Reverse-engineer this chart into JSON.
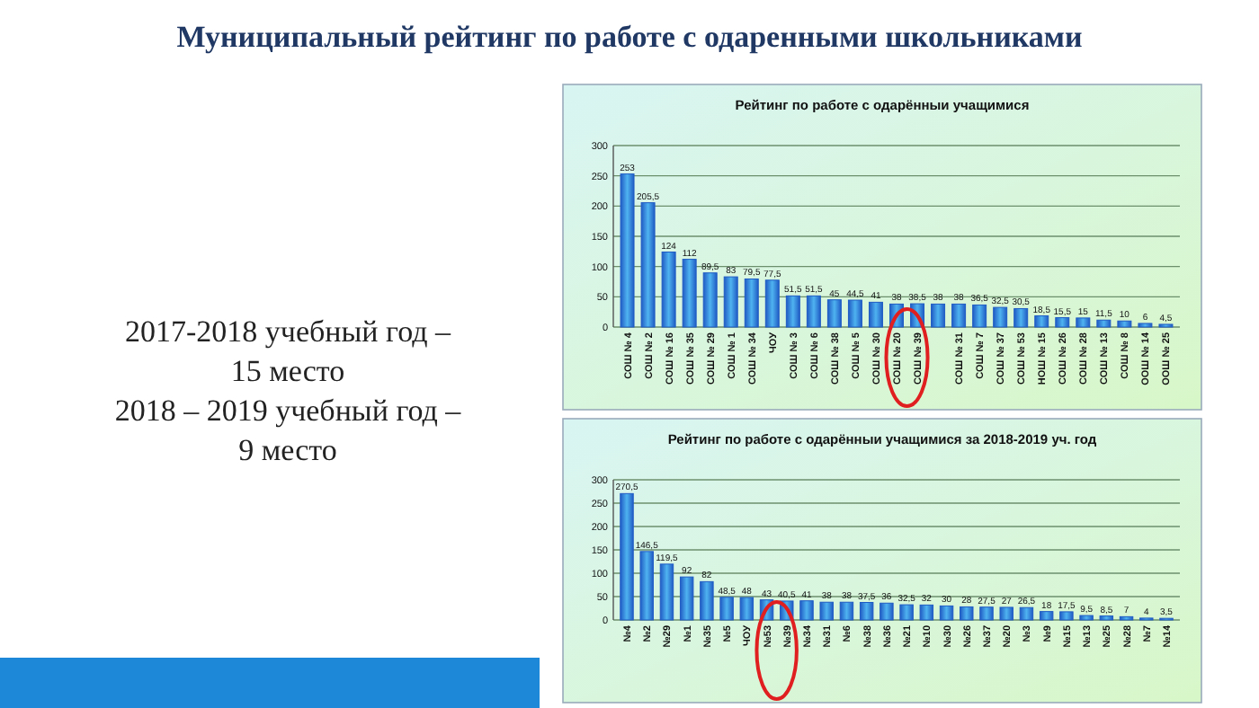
{
  "chart_data": [
    {
      "type": "other",
      "title": "Муниципальный рейтинг по работе с одаренными школьниками",
      "annotations": [
        "2017-2018 учебный год –",
        "15 место",
        "2018 – 2019 учебный год –",
        "9 место"
      ]
    },
    {
      "type": "bar",
      "title": "Рейтинг по работе с одарённыи учащимися",
      "categories": [
        "СОШ № 4",
        "СОШ № 2",
        "СОШ № 16",
        "СОШ № 35",
        "СОШ № 29",
        "СОШ № 1",
        "СОШ № 34",
        "ЧОУ",
        "СОШ № 3",
        "СОШ № 6",
        "СОШ № 38",
        "СОШ № 5",
        "СОШ № 30",
        "СОШ № 20",
        "СОШ № 39",
        null,
        "СОШ № 31",
        "СОШ № 7",
        "СОШ № 37",
        "СОШ № 53",
        "НОШ № 15",
        "СОШ № 26",
        "СОШ № 28",
        "СОШ № 13",
        "СОШ № 8",
        "ООШ № 14",
        "ООШ № 25"
      ],
      "values": [
        253,
        205.5,
        124,
        112,
        89.5,
        83,
        79.5,
        77.5,
        51.5,
        51.5,
        45,
        44.5,
        41,
        38,
        38.5,
        38,
        38,
        36.5,
        32.5,
        30.5,
        18.5,
        15.5,
        15,
        11.5,
        10,
        6,
        4.5
      ],
      "value_labels": [
        "253",
        "205,5",
        "124",
        "112",
        "89,5",
        "83",
        "79,5",
        "77,5",
        "51,5",
        "51,5",
        "45",
        "44,5",
        "41",
        "38",
        "38,5",
        "38",
        "38",
        "36,5",
        "32,5",
        "30,5",
        "18,5",
        "15,5",
        "15",
        "11,5",
        "10",
        "6",
        "4,5"
      ],
      "color": "#1f5bc4",
      "ylim": [
        0,
        300
      ],
      "yticks": [
        0,
        50,
        100,
        150,
        200,
        250,
        300
      ],
      "grid": "y"
    },
    {
      "type": "bar",
      "title": "Рейтинг по работе с одарённыи учащимися за 2018-2019 уч. год",
      "categories": [
        "№4",
        "№2",
        "№29",
        "№1",
        "№35",
        "№5",
        "ЧОУ",
        "№53",
        "№39",
        "№34",
        "№31",
        "№6",
        "№38",
        "№36",
        "№21",
        "№10",
        "№30",
        "№26",
        "№37",
        "№20",
        "№3",
        "№9",
        "№15",
        "№13",
        "№25",
        "№28",
        "№7",
        "№14"
      ],
      "values": [
        270.5,
        146.5,
        119.5,
        92,
        82,
        48.5,
        48,
        43,
        40.5,
        41,
        38,
        38,
        37.5,
        36,
        32.5,
        32,
        30,
        28,
        27.5,
        27,
        26.5,
        18,
        17.5,
        9.5,
        8.5,
        7,
        4,
        3.5
      ],
      "value_labels": [
        "270,5",
        "146,5",
        "119,5",
        "92",
        "82",
        "48,5",
        "48",
        "43",
        "40,5",
        "41",
        "38",
        "38",
        "37,5",
        "36",
        "32,5",
        "32",
        "30",
        "28",
        "27,5",
        "27",
        "26,5",
        "18",
        "17,5",
        "9,5",
        "8,5",
        "7",
        "4",
        "3,5"
      ],
      "color": "#1f5bc4",
      "ylim": [
        0,
        300
      ],
      "yticks": [
        0,
        50,
        100,
        150,
        200,
        250,
        300
      ],
      "grid": "y"
    }
  ]
}
